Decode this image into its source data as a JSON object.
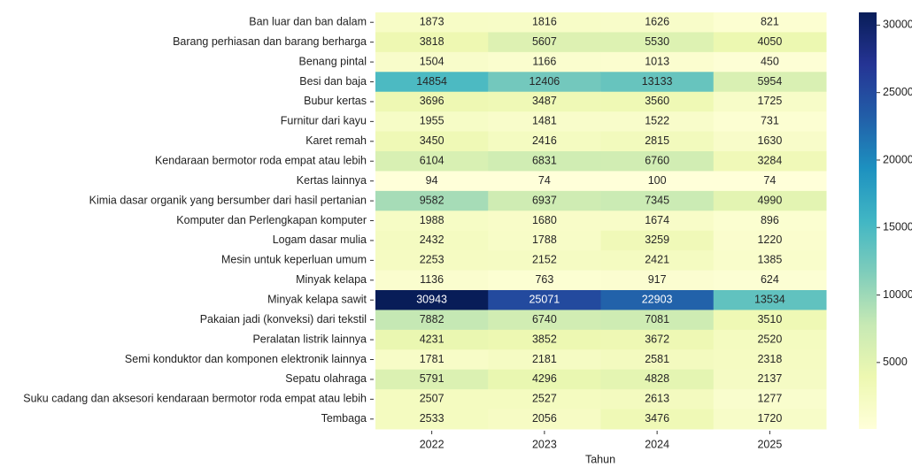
{
  "chart_data": {
    "type": "heatmap",
    "x_label": "Tahun",
    "x_categories": [
      "2022",
      "2023",
      "2024",
      "2025"
    ],
    "y_categories": [
      "Ban luar dan ban dalam",
      "Barang perhiasan dan barang berharga",
      "Benang pintal",
      "Besi dan baja",
      "Bubur kertas",
      "Furnitur dari kayu",
      "Karet remah",
      "Kendaraan bermotor roda empat atau lebih",
      "Kertas lainnya",
      "Kimia dasar organik yang bersumber dari hasil pertanian",
      "Komputer dan Perlengkapan komputer",
      "Logam dasar mulia",
      "Mesin untuk keperluan umum",
      "Minyak kelapa",
      "Minyak kelapa sawit",
      "Pakaian jadi (konveksi) dari tekstil",
      "Peralatan listrik lainnya",
      "Semi konduktor dan komponen elektronik lainnya",
      "Sepatu olahraga",
      "Suku cadang dan aksesori kendaraan bermotor roda empat atau lebih",
      "Tembaga"
    ],
    "values": [
      [
        1873,
        1816,
        1626,
        821
      ],
      [
        3818,
        5607,
        5530,
        4050
      ],
      [
        1504,
        1166,
        1013,
        450
      ],
      [
        14854,
        12406,
        13133,
        5954
      ],
      [
        3696,
        3487,
        3560,
        1725
      ],
      [
        1955,
        1481,
        1522,
        731
      ],
      [
        3450,
        2416,
        2815,
        1630
      ],
      [
        6104,
        6831,
        6760,
        3284
      ],
      [
        94,
        74,
        100,
        74
      ],
      [
        9582,
        6937,
        7345,
        4990
      ],
      [
        1988,
        1680,
        1674,
        896
      ],
      [
        2432,
        1788,
        3259,
        1220
      ],
      [
        2253,
        2152,
        2421,
        1385
      ],
      [
        1136,
        763,
        917,
        624
      ],
      [
        30943,
        25071,
        22903,
        13534
      ],
      [
        7882,
        6740,
        7081,
        3510
      ],
      [
        4231,
        3852,
        3672,
        2520
      ],
      [
        1781,
        2181,
        2581,
        2318
      ],
      [
        5791,
        4296,
        4828,
        2137
      ],
      [
        2507,
        2527,
        2613,
        1277
      ],
      [
        2533,
        2056,
        3476,
        1720
      ]
    ],
    "colorscale": [
      "#ffffd9",
      "#edf8b1",
      "#c7e9b4",
      "#7fcdbb",
      "#41b6c4",
      "#1d91c0",
      "#225ea8",
      "#253494",
      "#081d58"
    ],
    "clim": [
      74,
      30943
    ],
    "colorbar_ticks": [
      5000,
      10000,
      15000,
      20000,
      25000,
      30000
    ]
  }
}
